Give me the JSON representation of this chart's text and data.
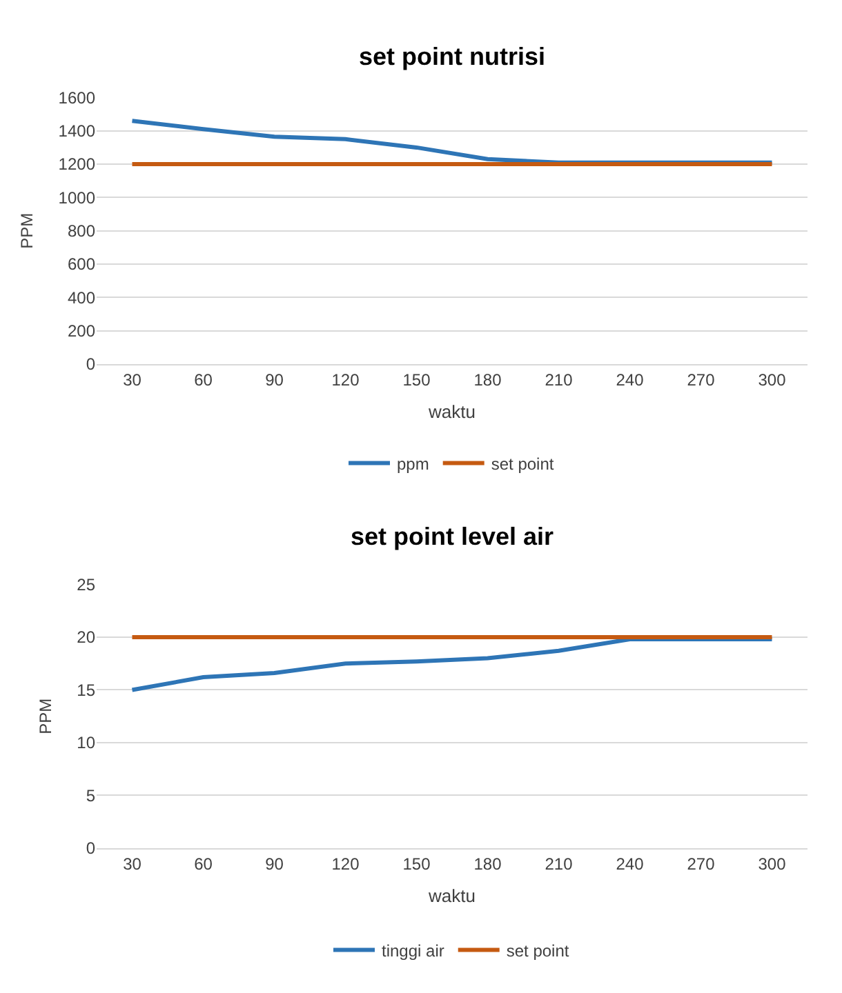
{
  "chart_data": [
    {
      "type": "line",
      "title": "set point nutrisi",
      "xlabel": "waktu",
      "ylabel": "PPM",
      "categories": [
        "30",
        "60",
        "90",
        "120",
        "150",
        "180",
        "210",
        "240",
        "270",
        "300"
      ],
      "series": [
        {
          "name": "ppm",
          "color": "#2e75b6",
          "values": [
            1460,
            1410,
            1365,
            1350,
            1300,
            1230,
            1210,
            1210,
            1210,
            1210
          ]
        },
        {
          "name": "set point",
          "color": "#c55a11",
          "values": [
            1200,
            1200,
            1200,
            1200,
            1200,
            1200,
            1200,
            1200,
            1200,
            1200
          ]
        }
      ],
      "ylim": [
        0,
        1600
      ],
      "yticks": [
        0,
        200,
        400,
        600,
        800,
        1000,
        1200,
        1400,
        1600
      ],
      "grid": "y",
      "legend": "bottom",
      "marker": "none",
      "line_style": "solid"
    },
    {
      "type": "line",
      "title": "set point level air",
      "xlabel": "waktu",
      "ylabel": "PPM",
      "categories": [
        "30",
        "60",
        "90",
        "120",
        "150",
        "180",
        "210",
        "240",
        "270",
        "300"
      ],
      "series": [
        {
          "name": "tinggi air",
          "color": "#2e75b6",
          "values": [
            15,
            16.2,
            16.6,
            17.5,
            17.7,
            18,
            18.7,
            19.8,
            19.8,
            19.8
          ]
        },
        {
          "name": "set point",
          "color": "#c55a11",
          "values": [
            20,
            20,
            20,
            20,
            20,
            20,
            20,
            20,
            20,
            20
          ]
        }
      ],
      "ylim": [
        0,
        25
      ],
      "yticks": [
        0,
        5,
        10,
        15,
        20,
        25
      ],
      "grid": "y",
      "legend": "bottom",
      "marker": "none",
      "line_style": "solid"
    }
  ]
}
